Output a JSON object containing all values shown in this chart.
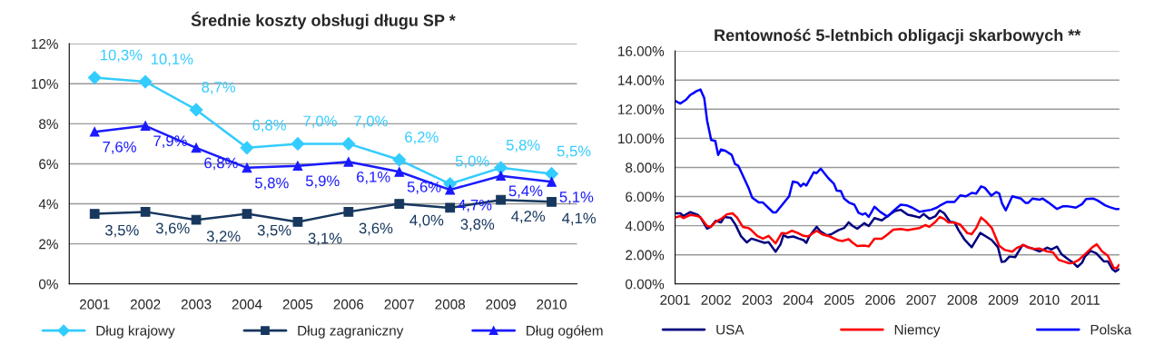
{
  "chart_data": [
    {
      "type": "line",
      "title": "Średnie koszty obsługi długu SP *",
      "categories": [
        "2001",
        "2002",
        "2003",
        "2004",
        "2005",
        "2006",
        "2007",
        "2008",
        "2009",
        "2010"
      ],
      "ylim": [
        0,
        12
      ],
      "yticks": [
        {
          "value": 0,
          "label": "0%"
        },
        {
          "value": 2,
          "label": "2%"
        },
        {
          "value": 4,
          "label": "4%"
        },
        {
          "value": 6,
          "label": "6%"
        },
        {
          "value": 8,
          "label": "8%"
        },
        {
          "value": 10,
          "label": "10%"
        },
        {
          "value": 12,
          "label": "12%"
        }
      ],
      "grid": "y",
      "legend": "bottom",
      "series": [
        {
          "name": "Dług krajowy",
          "color": "#33ccff",
          "marker": "diamond",
          "values": [
            10.3,
            10.1,
            8.7,
            6.8,
            7.0,
            7.0,
            6.2,
            5.0,
            5.8,
            5.5
          ],
          "value_labels": [
            "10,3%",
            "10,1%",
            "8,7%",
            "6,8%",
            "7,0%",
            "7,0%",
            "6,2%",
            "5,0%",
            "5,8%",
            "5,5%"
          ]
        },
        {
          "name": "Dług zagraniczny",
          "color": "#17375e",
          "marker": "square",
          "values": [
            3.5,
            3.6,
            3.2,
            3.5,
            3.1,
            3.6,
            4.0,
            3.8,
            4.2,
            4.1
          ],
          "value_labels": [
            "3,5%",
            "3,6%",
            "3,2%",
            "3,5%",
            "3,1%",
            "3,6%",
            "4,0%",
            "3,8%",
            "4,2%",
            "4,1%"
          ]
        },
        {
          "name": "Dług ogółem",
          "color": "#1a1aff",
          "marker": "triangle",
          "values": [
            7.6,
            7.9,
            6.8,
            5.8,
            5.9,
            6.1,
            5.6,
            4.7,
            5.4,
            5.1
          ],
          "value_labels": [
            "7,6%",
            "7,9%",
            "6,8%",
            "5,8%",
            "5,9%",
            "6,1%",
            "5,6%",
            "4,7%",
            "5,4%",
            "5,1%"
          ]
        }
      ]
    },
    {
      "type": "line",
      "title": "Rentowność 5-letnbich obligacji skarbowych **",
      "xlim": [
        2001,
        2011.83
      ],
      "xticks": [
        2001,
        2002,
        2003,
        2004,
        2005,
        2006,
        2007,
        2008,
        2009,
        2010,
        2011
      ],
      "ylim": [
        0,
        16
      ],
      "yticks": [
        {
          "value": 0,
          "label": "0.00%"
        },
        {
          "value": 2,
          "label": "2.00%"
        },
        {
          "value": 4,
          "label": "4.00%"
        },
        {
          "value": 6,
          "label": "6.00%"
        },
        {
          "value": 8,
          "label": "8.00%"
        },
        {
          "value": 10,
          "label": "10.00%"
        },
        {
          "value": 12,
          "label": "12.00%"
        },
        {
          "value": 14,
          "label": "14.00%"
        },
        {
          "value": 16,
          "label": "16.00%"
        }
      ],
      "grid": "y",
      "legend": "bottom",
      "series": [
        {
          "name": "USA",
          "color": "#000080",
          "x": [
            2001.0,
            2001.13,
            2001.2,
            2001.37,
            2001.55,
            2001.62,
            2001.78,
            2001.87,
            2001.99,
            2002.12,
            2002.2,
            2002.36,
            2002.47,
            2002.61,
            2002.75,
            2002.86,
            2003.0,
            2003.18,
            2003.28,
            2003.45,
            2003.57,
            2003.64,
            2003.74,
            2003.88,
            2004.02,
            2004.13,
            2004.2,
            2004.27,
            2004.45,
            2004.55,
            2004.7,
            2004.8,
            2004.98,
            2005.12,
            2005.23,
            2005.33,
            2005.44,
            2005.61,
            2005.72,
            2005.86,
            2006.04,
            2006.18,
            2006.36,
            2006.5,
            2006.67,
            2006.82,
            2006.96,
            2007.06,
            2007.2,
            2007.35,
            2007.45,
            2007.56,
            2007.7,
            2007.81,
            2007.91,
            2008.05,
            2008.23,
            2008.44,
            2008.58,
            2008.72,
            2008.87,
            2008.96,
            2009.04,
            2009.15,
            2009.29,
            2009.47,
            2009.61,
            2009.71,
            2009.89,
            2010.07,
            2010.17,
            2010.31,
            2010.42,
            2010.6,
            2010.7,
            2010.81,
            2010.92,
            2010.99,
            2011.13,
            2011.27,
            2011.45,
            2011.55,
            2011.66,
            2011.73,
            2011.82
          ],
          "values": [
            4.85,
            4.85,
            4.66,
            4.93,
            4.74,
            4.56,
            3.79,
            3.92,
            4.33,
            4.23,
            4.6,
            4.54,
            4.08,
            3.26,
            2.85,
            3.11,
            2.99,
            2.82,
            2.87,
            2.21,
            2.72,
            3.34,
            3.2,
            3.26,
            3.11,
            3.01,
            2.82,
            3.26,
            3.92,
            3.59,
            3.34,
            3.4,
            3.69,
            3.84,
            4.23,
            3.98,
            3.79,
            4.17,
            3.98,
            4.52,
            4.37,
            4.66,
            5.01,
            5.09,
            4.76,
            4.66,
            4.56,
            4.8,
            4.47,
            4.66,
            5.05,
            4.85,
            4.27,
            4.23,
            3.69,
            3.07,
            2.52,
            3.5,
            3.26,
            3.01,
            2.52,
            1.51,
            1.55,
            1.88,
            1.84,
            2.68,
            2.52,
            2.43,
            2.23,
            2.49,
            2.37,
            2.56,
            2.04,
            1.65,
            1.46,
            1.17,
            1.46,
            1.88,
            2.27,
            2.1,
            1.55,
            1.55,
            1.01,
            0.85,
            1.01
          ]
        },
        {
          "name": "Niemcy",
          "color": "#ff0000",
          "x": [
            2001.0,
            2001.13,
            2001.2,
            2001.37,
            2001.55,
            2001.62,
            2001.78,
            2001.87,
            2001.99,
            2002.15,
            2002.26,
            2002.4,
            2002.51,
            2002.65,
            2002.79,
            2002.86,
            2003.0,
            2003.14,
            2003.28,
            2003.45,
            2003.6,
            2003.71,
            2003.85,
            2003.99,
            2004.13,
            2004.24,
            2004.45,
            2004.59,
            2004.77,
            2004.98,
            2005.08,
            2005.23,
            2005.33,
            2005.44,
            2005.61,
            2005.72,
            2005.86,
            2006.04,
            2006.18,
            2006.32,
            2006.5,
            2006.67,
            2006.82,
            2006.96,
            2007.1,
            2007.2,
            2007.35,
            2007.45,
            2007.56,
            2007.66,
            2007.81,
            2007.95,
            2008.12,
            2008.23,
            2008.34,
            2008.46,
            2008.58,
            2008.72,
            2008.9,
            2009.04,
            2009.22,
            2009.33,
            2009.5,
            2009.61,
            2009.75,
            2009.89,
            2010.07,
            2010.21,
            2010.35,
            2010.46,
            2010.6,
            2010.7,
            2010.84,
            2010.99,
            2011.16,
            2011.28,
            2011.41,
            2011.55,
            2011.69,
            2011.76,
            2011.82
          ],
          "values": [
            4.56,
            4.66,
            4.52,
            4.74,
            4.66,
            4.56,
            3.98,
            3.92,
            4.27,
            4.52,
            4.78,
            4.85,
            4.56,
            3.92,
            3.84,
            3.69,
            3.3,
            3.11,
            3.3,
            2.78,
            3.5,
            3.46,
            3.65,
            3.5,
            3.3,
            3.26,
            3.65,
            3.4,
            3.26,
            2.99,
            2.95,
            3.07,
            2.82,
            2.6,
            2.64,
            2.58,
            3.11,
            3.11,
            3.4,
            3.73,
            3.77,
            3.69,
            3.77,
            3.84,
            4.04,
            3.92,
            4.27,
            4.6,
            4.47,
            4.23,
            4.21,
            4.08,
            3.5,
            3.42,
            3.84,
            4.56,
            4.27,
            3.84,
            2.62,
            2.33,
            2.21,
            2.47,
            2.68,
            2.49,
            2.41,
            2.43,
            2.23,
            2.17,
            1.65,
            1.55,
            1.42,
            1.44,
            1.65,
            2.04,
            2.49,
            2.72,
            2.23,
            1.94,
            1.11,
            1.07,
            1.3
          ]
        },
        {
          "name": "Polska",
          "color": "#0000ff",
          "x": [
            2001.0,
            2001.13,
            2001.27,
            2001.36,
            2001.52,
            2001.62,
            2001.71,
            2001.78,
            2001.88,
            2001.98,
            2002.05,
            2002.12,
            2002.22,
            2002.38,
            2002.46,
            2002.54,
            2002.79,
            2002.88,
            2003.04,
            2003.14,
            2003.39,
            2003.46,
            2003.64,
            2003.78,
            2003.87,
            2003.99,
            2004.06,
            2004.13,
            2004.2,
            2004.38,
            2004.45,
            2004.55,
            2004.73,
            2004.87,
            2004.94,
            2005.04,
            2005.12,
            2005.25,
            2005.37,
            2005.47,
            2005.57,
            2005.64,
            2005.72,
            2005.86,
            2006.0,
            2006.18,
            2006.32,
            2006.5,
            2006.64,
            2006.78,
            2006.96,
            2007.06,
            2007.24,
            2007.38,
            2007.49,
            2007.63,
            2007.81,
            2007.95,
            2008.09,
            2008.23,
            2008.34,
            2008.46,
            2008.55,
            2008.71,
            2008.83,
            2008.9,
            2008.97,
            2009.06,
            2009.22,
            2009.43,
            2009.54,
            2009.61,
            2009.71,
            2009.89,
            2009.96,
            2010.1,
            2010.31,
            2010.46,
            2010.56,
            2010.77,
            2010.92,
            2011.02,
            2011.2,
            2011.3,
            2011.48,
            2011.59,
            2011.73,
            2011.82
          ],
          "values": [
            12.58,
            12.39,
            12.66,
            12.95,
            13.24,
            13.35,
            12.77,
            11.23,
            9.88,
            9.82,
            8.86,
            9.24,
            9.15,
            8.86,
            8.24,
            8.12,
            6.6,
            5.92,
            5.59,
            5.59,
            4.91,
            4.91,
            5.53,
            6.02,
            7.03,
            6.95,
            6.7,
            6.89,
            6.76,
            7.67,
            7.61,
            7.92,
            7.28,
            6.89,
            6.41,
            6.37,
            5.86,
            5.57,
            5.44,
            4.89,
            4.76,
            4.85,
            4.6,
            5.3,
            4.95,
            4.62,
            5.01,
            5.44,
            5.4,
            5.24,
            4.95,
            5.01,
            5.09,
            5.24,
            5.44,
            5.63,
            5.63,
            6.08,
            6.02,
            6.25,
            6.21,
            6.7,
            6.6,
            6.06,
            6.31,
            6.21,
            5.53,
            5.05,
            6.02,
            5.86,
            5.57,
            5.57,
            5.86,
            5.79,
            5.86,
            5.59,
            5.15,
            5.34,
            5.34,
            5.24,
            5.48,
            5.83,
            5.86,
            5.73,
            5.4,
            5.28,
            5.15,
            5.15
          ]
        }
      ]
    }
  ]
}
